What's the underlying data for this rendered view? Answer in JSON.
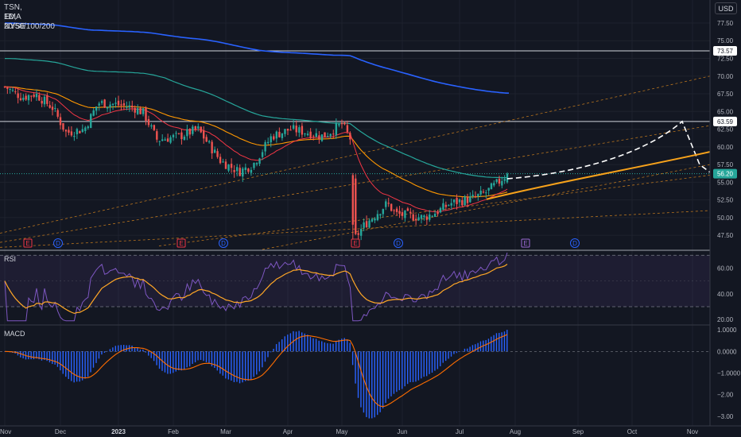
{
  "header": {
    "symbol": "TSN, 1D, NYSE",
    "indicator": "EMA 20/50/100/200",
    "currency_button": "USD"
  },
  "panes": {
    "rsi_label": "RSI",
    "macd_label": "MACD"
  },
  "colors": {
    "background": "#131722",
    "candle_up": "#26a69a",
    "candle_down": "#ef5350",
    "ema20": "#f23645",
    "ema50": "#ff9800",
    "ema100": "#26a69a",
    "ema200": "#2962ff",
    "rsi_line": "#7e57c2",
    "rsi_ma": "#ffa726",
    "macd_hist": "#2962ff",
    "macd_signal": "#ff6d00",
    "projection": "#ffffff",
    "projection_trend": "#f7a21b"
  },
  "chart_data": [
    {
      "type": "candlestick",
      "title": "TSN, 1D, NYSE",
      "x_tick_labels": [
        "Nov",
        "Dec",
        "2023",
        "Feb",
        "Mar",
        "Apr",
        "May",
        "Jun",
        "Jul",
        "Aug",
        "Sep",
        "Oct",
        "Nov"
      ],
      "y_tick_labels": [
        "47.50",
        "50.00",
        "52.50",
        "55.00",
        "57.50",
        "60.00",
        "62.50",
        "65.00",
        "67.50",
        "70.00",
        "72.50",
        "75.00",
        "77.50"
      ],
      "ylim": [
        45.5,
        80.3
      ],
      "horizontal_levels": [
        73.57,
        63.59
      ],
      "price_labels": [
        "73.57",
        "63.59",
        "56.20"
      ],
      "last_price": 56.2,
      "series": [
        {
          "name": "EMA 20"
        },
        {
          "name": "EMA 50"
        },
        {
          "name": "EMA 100"
        },
        {
          "name": "EMA 200"
        }
      ],
      "event_markers": [
        {
          "kind": "E",
          "month": "Nov"
        },
        {
          "kind": "D",
          "month": "Nov"
        },
        {
          "kind": "E",
          "month": "Feb"
        },
        {
          "kind": "D",
          "month": "Feb"
        },
        {
          "kind": "E",
          "month": "May"
        },
        {
          "kind": "D",
          "month": "May"
        },
        {
          "kind": "E",
          "month": "Aug"
        },
        {
          "kind": "D",
          "month": "Aug"
        }
      ],
      "projection_peak": 63.59
    },
    {
      "type": "line",
      "title": "RSI",
      "y_tick_labels": [
        "20.00",
        "40.00",
        "60.00"
      ],
      "ylim": [
        17,
        72
      ],
      "bands": [
        30,
        70
      ],
      "last_value": 72
    },
    {
      "type": "bar",
      "title": "MACD",
      "y_tick_labels": [
        "1.0000",
        "0.0000",
        "−1.0000",
        "−2.00",
        "−3.00"
      ],
      "ylim": [
        -3.3,
        1.15
      ],
      "min_value": -3.1,
      "max_value": 1.0
    }
  ]
}
